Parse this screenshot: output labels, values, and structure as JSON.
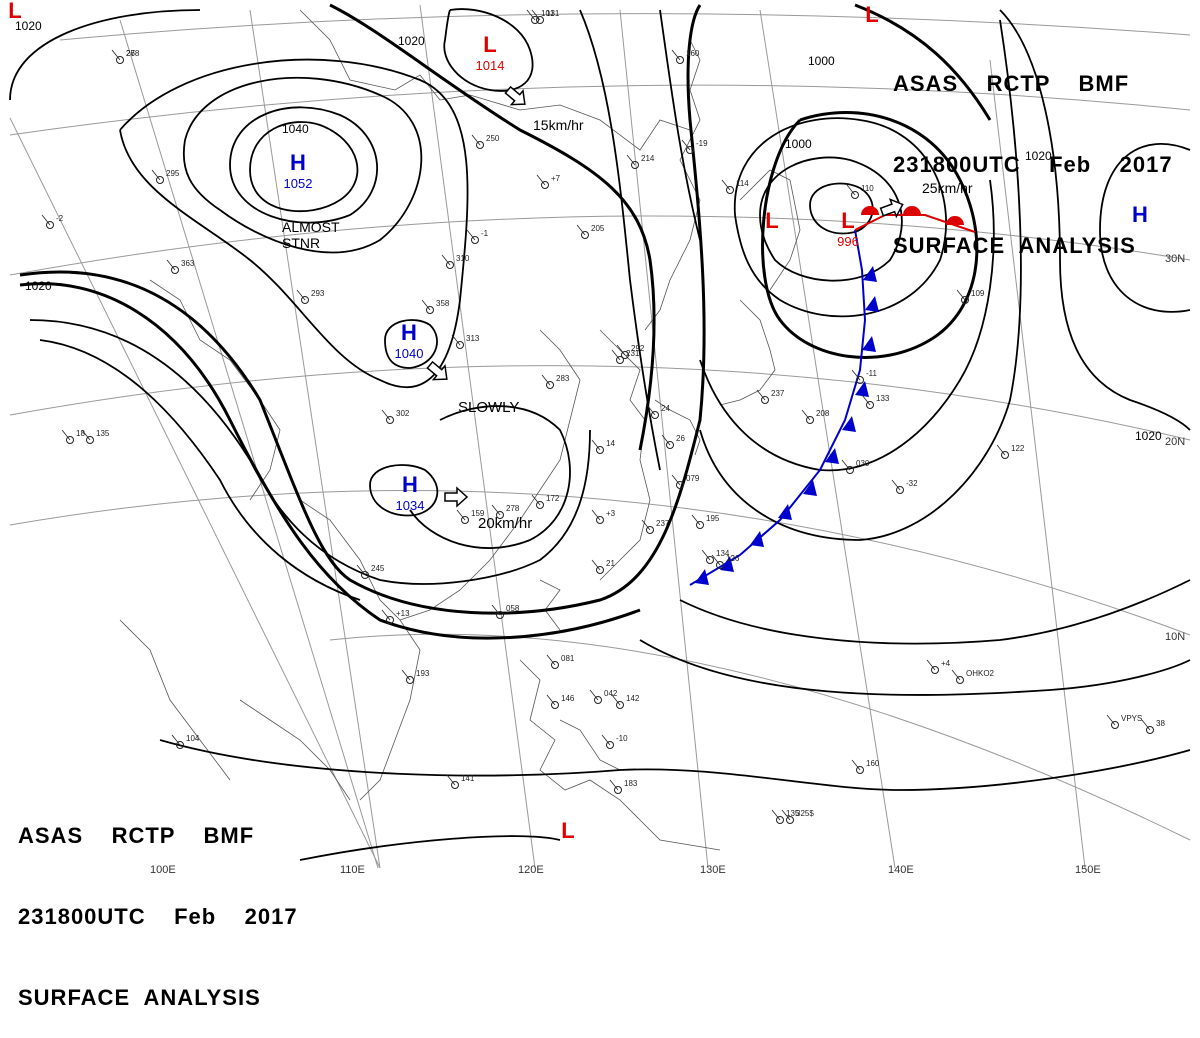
{
  "header": {
    "line1": "ASAS    RCTP    BMF",
    "line2": "231800UTC    Feb    2017",
    "line3": "SURFACE  ANALYSIS"
  },
  "colors": {
    "isobar": "#000000",
    "high": "#0000cc",
    "low": "#dd0000",
    "warm_front": "#dd0000",
    "cold_front": "#0000cc",
    "grid": "#999999",
    "coast": "#555555"
  },
  "pressure_centers": [
    {
      "type": "H",
      "value": "1052"
    },
    {
      "type": "H",
      "value": "1040"
    },
    {
      "type": "H",
      "value": "1034"
    },
    {
      "type": "H",
      "value": ""
    },
    {
      "type": "L",
      "value": "1014"
    },
    {
      "type": "L",
      "value": "996"
    },
    {
      "type": "L",
      "value": ""
    },
    {
      "type": "L",
      "value": ""
    },
    {
      "type": "L",
      "value": ""
    },
    {
      "type": "L",
      "value": ""
    }
  ],
  "isobar_labels": [
    "1020",
    "1020",
    "1040",
    "1020",
    "1000",
    "1000",
    "1020",
    "1020"
  ],
  "motion_labels": [
    "15km/hr",
    "SLOWLY",
    "20km/hr",
    "25km/hr",
    "ALMOST",
    "STNR"
  ],
  "grid_labels": {
    "lat": [
      "30N",
      "20N",
      "10N"
    ],
    "lon": [
      "100E",
      "110E",
      "120E",
      "130E",
      "140E",
      "150E"
    ]
  },
  "station_labels": [
    "268",
    "295",
    "-2",
    "363",
    "293",
    "310",
    "358",
    "313",
    "-1",
    "302",
    "18",
    "135",
    "245",
    "+13",
    "193",
    "159",
    "278",
    "+3",
    "237",
    "195",
    "172",
    "283",
    "231",
    "292",
    "250",
    "+7",
    "205",
    "214",
    "160",
    "-19",
    "114",
    "237",
    "-11",
    "030",
    "079",
    "058",
    "081",
    "042",
    "146",
    "-10",
    "183",
    "+4",
    "160",
    "135",
    "141",
    "104",
    "142",
    "126",
    "133",
    "101",
    "131",
    "110",
    "109",
    "134",
    "122",
    "OHKO2",
    "VPYS",
    "325$",
    "208",
    "-32",
    "38",
    "14",
    "24",
    "26",
    "21",
    "27"
  ]
}
